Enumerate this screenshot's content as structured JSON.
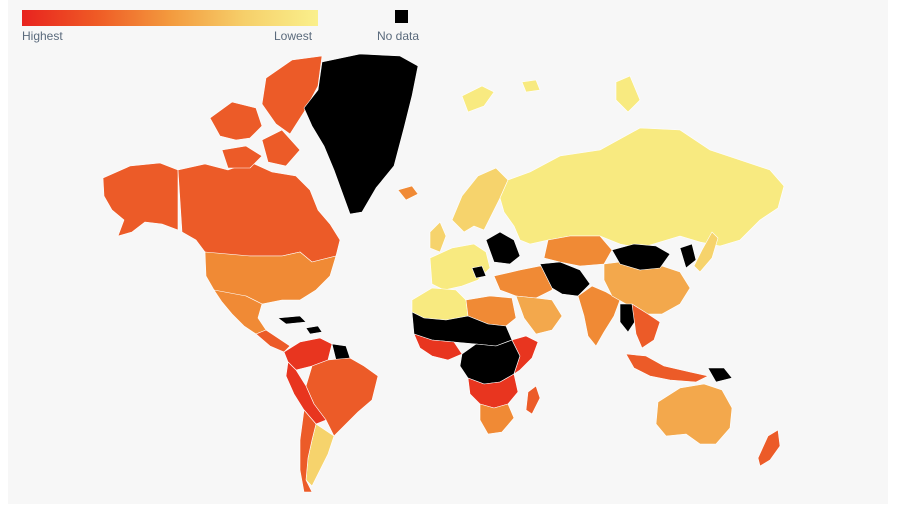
{
  "legend": {
    "high_label": "Highest",
    "low_label": "Lowest",
    "nodata_label": "No data",
    "gradient": [
      "#e8231f",
      "#ef5a25",
      "#f39a3e",
      "#f6cf6a",
      "#faf08c"
    ],
    "nodata_color": "#000000"
  },
  "colors": {
    "background": "#f7f7f7",
    "highest": "#e8351f",
    "high": "#ec5b28",
    "mid": "#f08a35",
    "mid_light": "#f3a84c",
    "light": "#f6d36c",
    "lowest": "#f8ea80",
    "nodata": "#000000"
  },
  "regions": [
    {
      "name": "canada",
      "level": "high"
    },
    {
      "name": "canadian-arctic",
      "level": "high"
    },
    {
      "name": "alaska",
      "level": "high"
    },
    {
      "name": "usa",
      "level": "mid"
    },
    {
      "name": "mexico",
      "level": "mid"
    },
    {
      "name": "central-america",
      "level": "high"
    },
    {
      "name": "caribbean",
      "level": "nodata"
    },
    {
      "name": "greenland",
      "level": "nodata"
    },
    {
      "name": "iceland",
      "level": "mid"
    },
    {
      "name": "colombia-venezuela",
      "level": "highest"
    },
    {
      "name": "guianas",
      "level": "nodata"
    },
    {
      "name": "brazil",
      "level": "high"
    },
    {
      "name": "peru-bolivia",
      "level": "highest"
    },
    {
      "name": "argentina",
      "level": "light"
    },
    {
      "name": "chile",
      "level": "high"
    },
    {
      "name": "scandinavia",
      "level": "light"
    },
    {
      "name": "western-europe",
      "level": "lowest"
    },
    {
      "name": "uk",
      "level": "light"
    },
    {
      "name": "eastern-europe",
      "level": "nodata"
    },
    {
      "name": "russia",
      "level": "lowest"
    },
    {
      "name": "north-africa",
      "level": "lowest"
    },
    {
      "name": "egypt-libya",
      "level": "mid"
    },
    {
      "name": "sahel",
      "level": "nodata"
    },
    {
      "name": "west-africa",
      "level": "highest"
    },
    {
      "name": "central-africa",
      "level": "nodata"
    },
    {
      "name": "east-africa",
      "level": "highest"
    },
    {
      "name": "southern-africa",
      "level": "highest"
    },
    {
      "name": "south-africa",
      "level": "mid"
    },
    {
      "name": "madagascar",
      "level": "high"
    },
    {
      "name": "middle-east",
      "level": "mid"
    },
    {
      "name": "arabia",
      "level": "mid_light"
    },
    {
      "name": "central-asia",
      "level": "mid"
    },
    {
      "name": "afghanistan-region",
      "level": "nodata"
    },
    {
      "name": "india",
      "level": "mid"
    },
    {
      "name": "china",
      "level": "mid_light"
    },
    {
      "name": "mongolia",
      "level": "nodata"
    },
    {
      "name": "korea",
      "level": "nodata"
    },
    {
      "name": "japan",
      "level": "light"
    },
    {
      "name": "southeast-asia",
      "level": "high"
    },
    {
      "name": "myanmar",
      "level": "nodata"
    },
    {
      "name": "indonesia",
      "level": "high"
    },
    {
      "name": "papua",
      "level": "nodata"
    },
    {
      "name": "australia",
      "level": "mid_light"
    },
    {
      "name": "new-zealand",
      "level": "high"
    },
    {
      "name": "svalbard",
      "level": "lowest"
    },
    {
      "name": "baffin",
      "level": "high"
    }
  ]
}
